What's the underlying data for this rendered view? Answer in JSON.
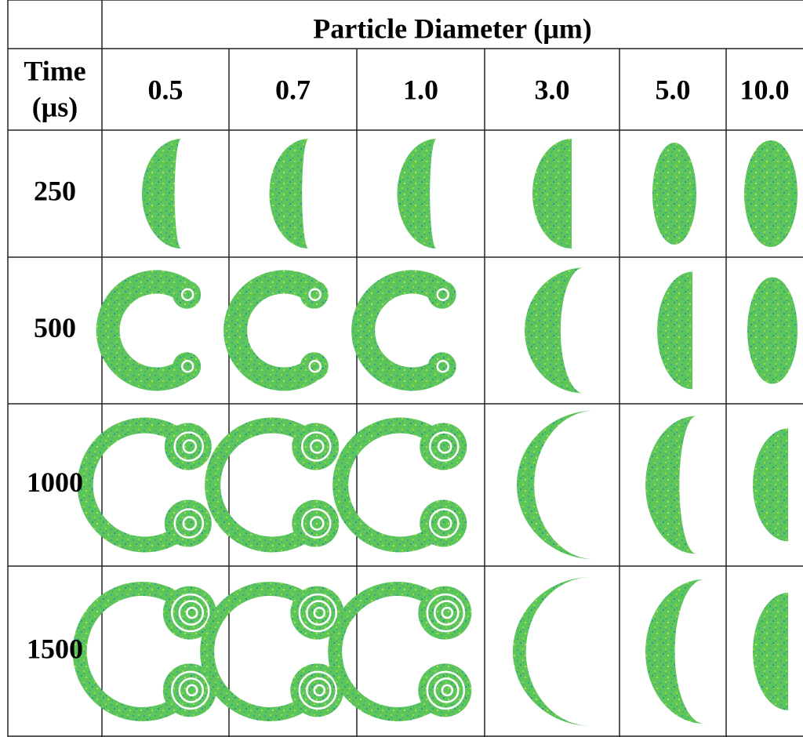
{
  "table": {
    "title": "Particle Diameter (μm)",
    "corner_header": [
      "Time",
      "(μs)"
    ],
    "columns": [
      "0.5",
      "0.7",
      "1.0",
      "3.0",
      "5.0",
      "10.0"
    ],
    "rows": [
      "250",
      "500",
      "1000",
      "1500"
    ]
  }
}
